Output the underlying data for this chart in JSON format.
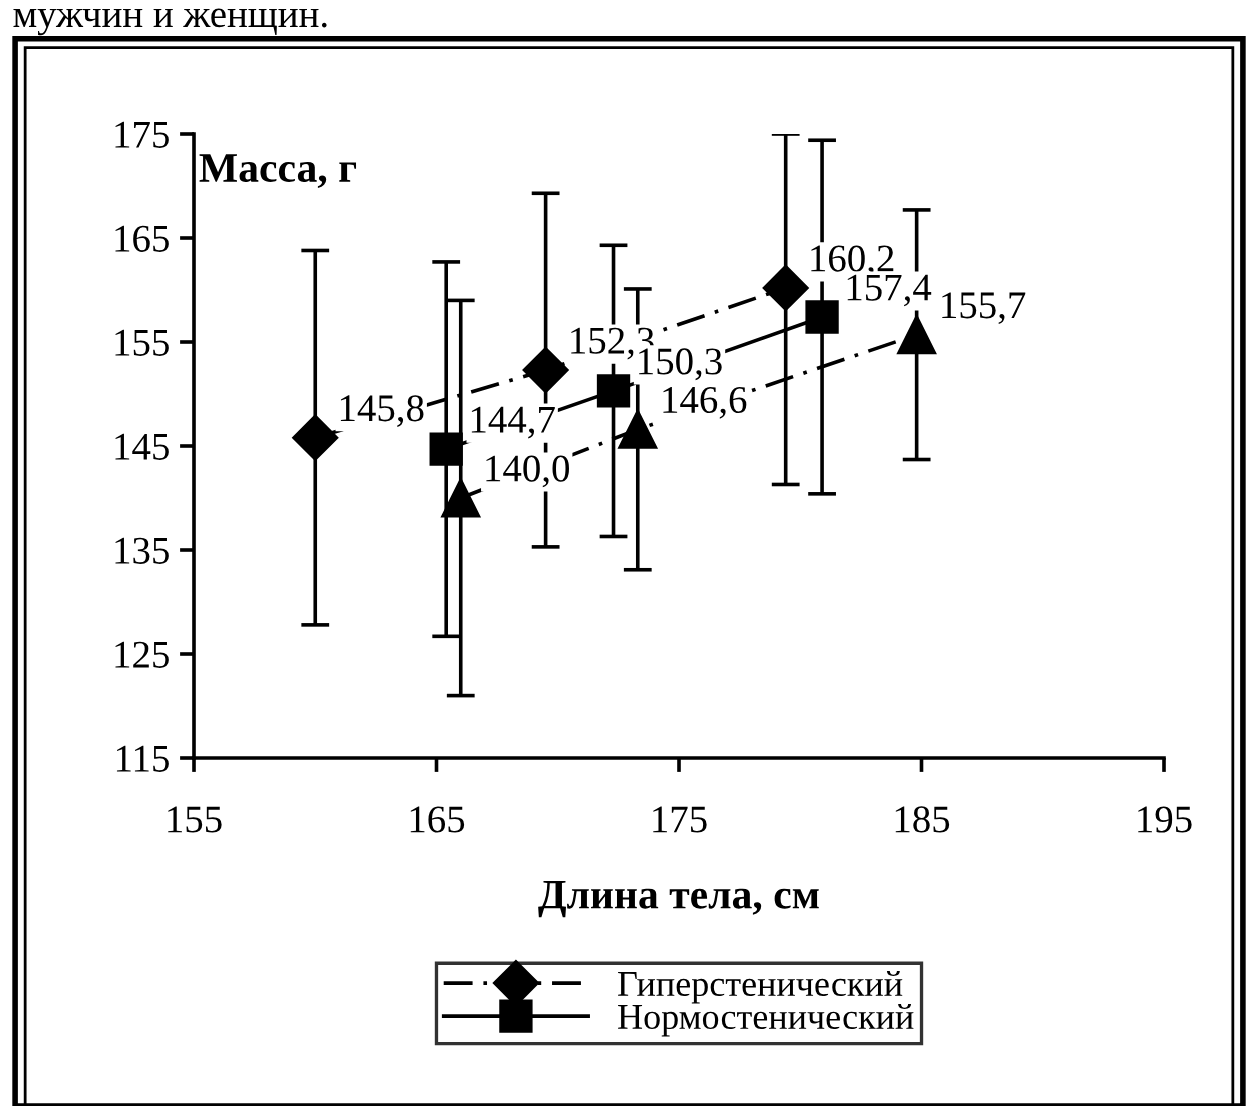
{
  "chart_data": {
    "type": "line",
    "xlabel": "Длина тела, см",
    "ylabel": "Масса, г",
    "annotations": [
      "мужчин и женщин."
    ],
    "xlim": [
      155,
      195
    ],
    "xticks": [
      155,
      165,
      175,
      185,
      195
    ],
    "ylim": [
      115,
      175
    ],
    "yticks": [
      115,
      125,
      135,
      145,
      155,
      165,
      175
    ],
    "grid": false,
    "legend": "bottom",
    "series": [
      {
        "name": "Гиперстенический",
        "color": "#000000",
        "marker": "diamond",
        "line_style": "dashed",
        "x": [
          160.0,
          169.5,
          179.4
        ],
        "values": [
          145.8,
          152.3,
          160.2
        ],
        "errors": [
          18,
          17,
          [
            141.3,
            175
          ]
        ],
        "value_labels": [
          "145,8",
          "152,3",
          "160,2"
        ]
      },
      {
        "name": "Нормостенический",
        "color": "#000000",
        "marker": "square",
        "line_style": "solid",
        "x": [
          165.4,
          172.3,
          180.9
        ],
        "values": [
          144.7,
          150.3,
          157.4
        ],
        "errors": [
          18,
          14,
          17
        ],
        "value_labels": [
          "144,7",
          "150,3",
          "157,4"
        ]
      },
      {
        "color": "#000000",
        "marker": "triangle",
        "line_style": "dashed",
        "x": [
          166.0,
          173.3,
          184.8
        ],
        "values": [
          140.0,
          146.6,
          155.7
        ],
        "errors": [
          19,
          13.5,
          12
        ],
        "value_labels": [
          "140,0",
          "146,6",
          "155,7"
        ]
      }
    ]
  }
}
